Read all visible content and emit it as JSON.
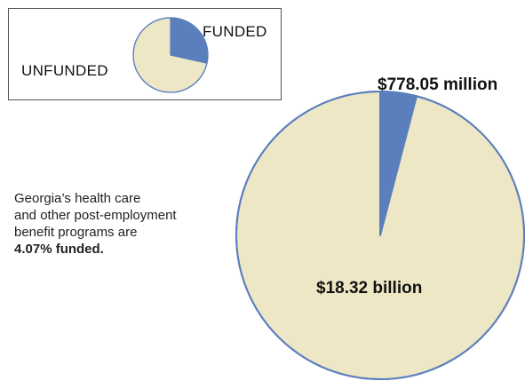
{
  "chart_data": {
    "type": "pie",
    "categories": [
      "FUNDED",
      "UNFUNDED"
    ],
    "values": [
      778.05,
      18320
    ],
    "value_labels": [
      "$778.05 million",
      "$18.32 billion"
    ],
    "colors": [
      "#5b7fbd",
      "#ede7c6"
    ],
    "edge_color": "#5b7fbd",
    "legend": {
      "funded_label": "FUNDED",
      "unfunded_label": "UNFUNDED",
      "placement": "top-left"
    }
  },
  "description": {
    "line1": "Georgia’s health care",
    "line2": "and other post-employment",
    "line3": "benefit programs are",
    "emphasis": "4.07% funded."
  }
}
